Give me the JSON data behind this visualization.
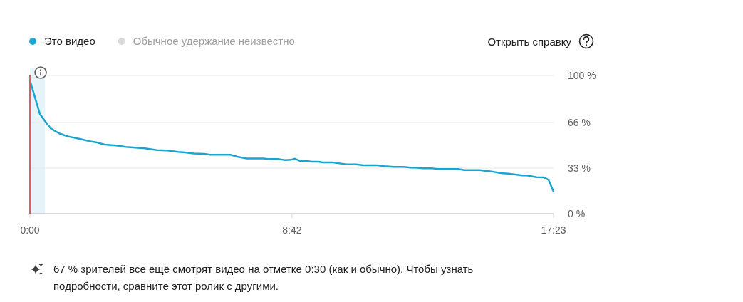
{
  "chart_data": {
    "type": "line",
    "annotations": [
      "Открыть справку",
      "67 % зрителей все ещё смотрят видео на отметке 0:30 (как и обычно). Чтобы узнать подробности, сравните этот ролик с другими."
    ],
    "x": [
      0,
      20,
      30,
      42,
      59,
      75,
      101,
      118,
      134,
      149,
      172,
      191,
      210,
      229,
      253,
      274,
      295,
      309,
      326,
      347,
      359,
      380,
      399,
      413,
      432,
      465,
      477,
      496,
      508,
      520,
      528,
      537,
      548,
      562,
      574,
      584,
      603,
      617,
      631,
      650,
      664,
      692,
      706,
      725,
      744,
      759,
      773,
      782,
      801,
      813,
      853,
      865,
      896,
      919,
      938,
      953,
      967,
      981,
      990,
      1009,
      1023,
      1033,
      1043
    ],
    "series": [
      {
        "name": "Это видео",
        "color": "#1aa5cf",
        "values": [
          96.5,
          72,
          67,
          61.5,
          58,
          56,
          54,
          52.5,
          51.5,
          50,
          49.3,
          48.3,
          47.8,
          47.3,
          46,
          45.7,
          44.7,
          44.3,
          43.5,
          43.3,
          42.7,
          42.7,
          42.7,
          41.2,
          40,
          40,
          39.5,
          39.5,
          38.8,
          39,
          39.8,
          38.3,
          38.3,
          37.6,
          37.6,
          37.1,
          37.1,
          36.4,
          35.7,
          35.7,
          35.1,
          35.1,
          34.4,
          33.9,
          33.9,
          33.4,
          33.2,
          32.8,
          32.8,
          32.3,
          32.3,
          31.6,
          31.6,
          30.6,
          29.4,
          29,
          28.4,
          27.7,
          27.7,
          26.4,
          26.3,
          24.6,
          16
        ]
      },
      {
        "name": "Обычное удержание неизвестно",
        "color": "#dadada",
        "values": [
          null,
          null,
          null,
          null,
          null,
          null,
          null,
          null,
          null,
          null,
          null,
          null,
          null,
          null,
          null,
          null,
          null,
          null,
          null,
          null,
          null,
          null,
          null,
          null,
          null,
          null,
          null,
          null,
          null,
          null,
          null,
          null,
          null,
          null,
          null,
          null,
          null,
          null,
          null,
          null,
          null,
          null,
          null,
          null,
          null,
          null,
          null,
          null,
          null,
          null,
          null,
          null,
          null,
          null,
          null,
          null,
          null,
          null,
          null,
          null,
          null,
          null,
          null
        ]
      }
    ],
    "xlim": [
      0,
      1043
    ],
    "xticks": [
      {
        "value": 0,
        "label": "0:00"
      },
      {
        "value": 522,
        "label": "8:42"
      },
      {
        "value": 1043,
        "label": "17:23"
      }
    ],
    "ylim": [
      0,
      100
    ],
    "yticks": [
      {
        "value": 0,
        "label": "0 %"
      },
      {
        "value": 33,
        "label": "33 %"
      },
      {
        "value": 66,
        "label": "66 %"
      },
      {
        "value": 100,
        "label": "100 %"
      }
    ],
    "ref_lines": [
      {
        "axis": "x",
        "value": 0,
        "color": "#d9605a"
      }
    ],
    "bands": [
      {
        "axis": "x",
        "from": 0,
        "to": 30,
        "color": "#e7f4f9"
      }
    ],
    "grid": "y",
    "legend": "top left"
  }
}
